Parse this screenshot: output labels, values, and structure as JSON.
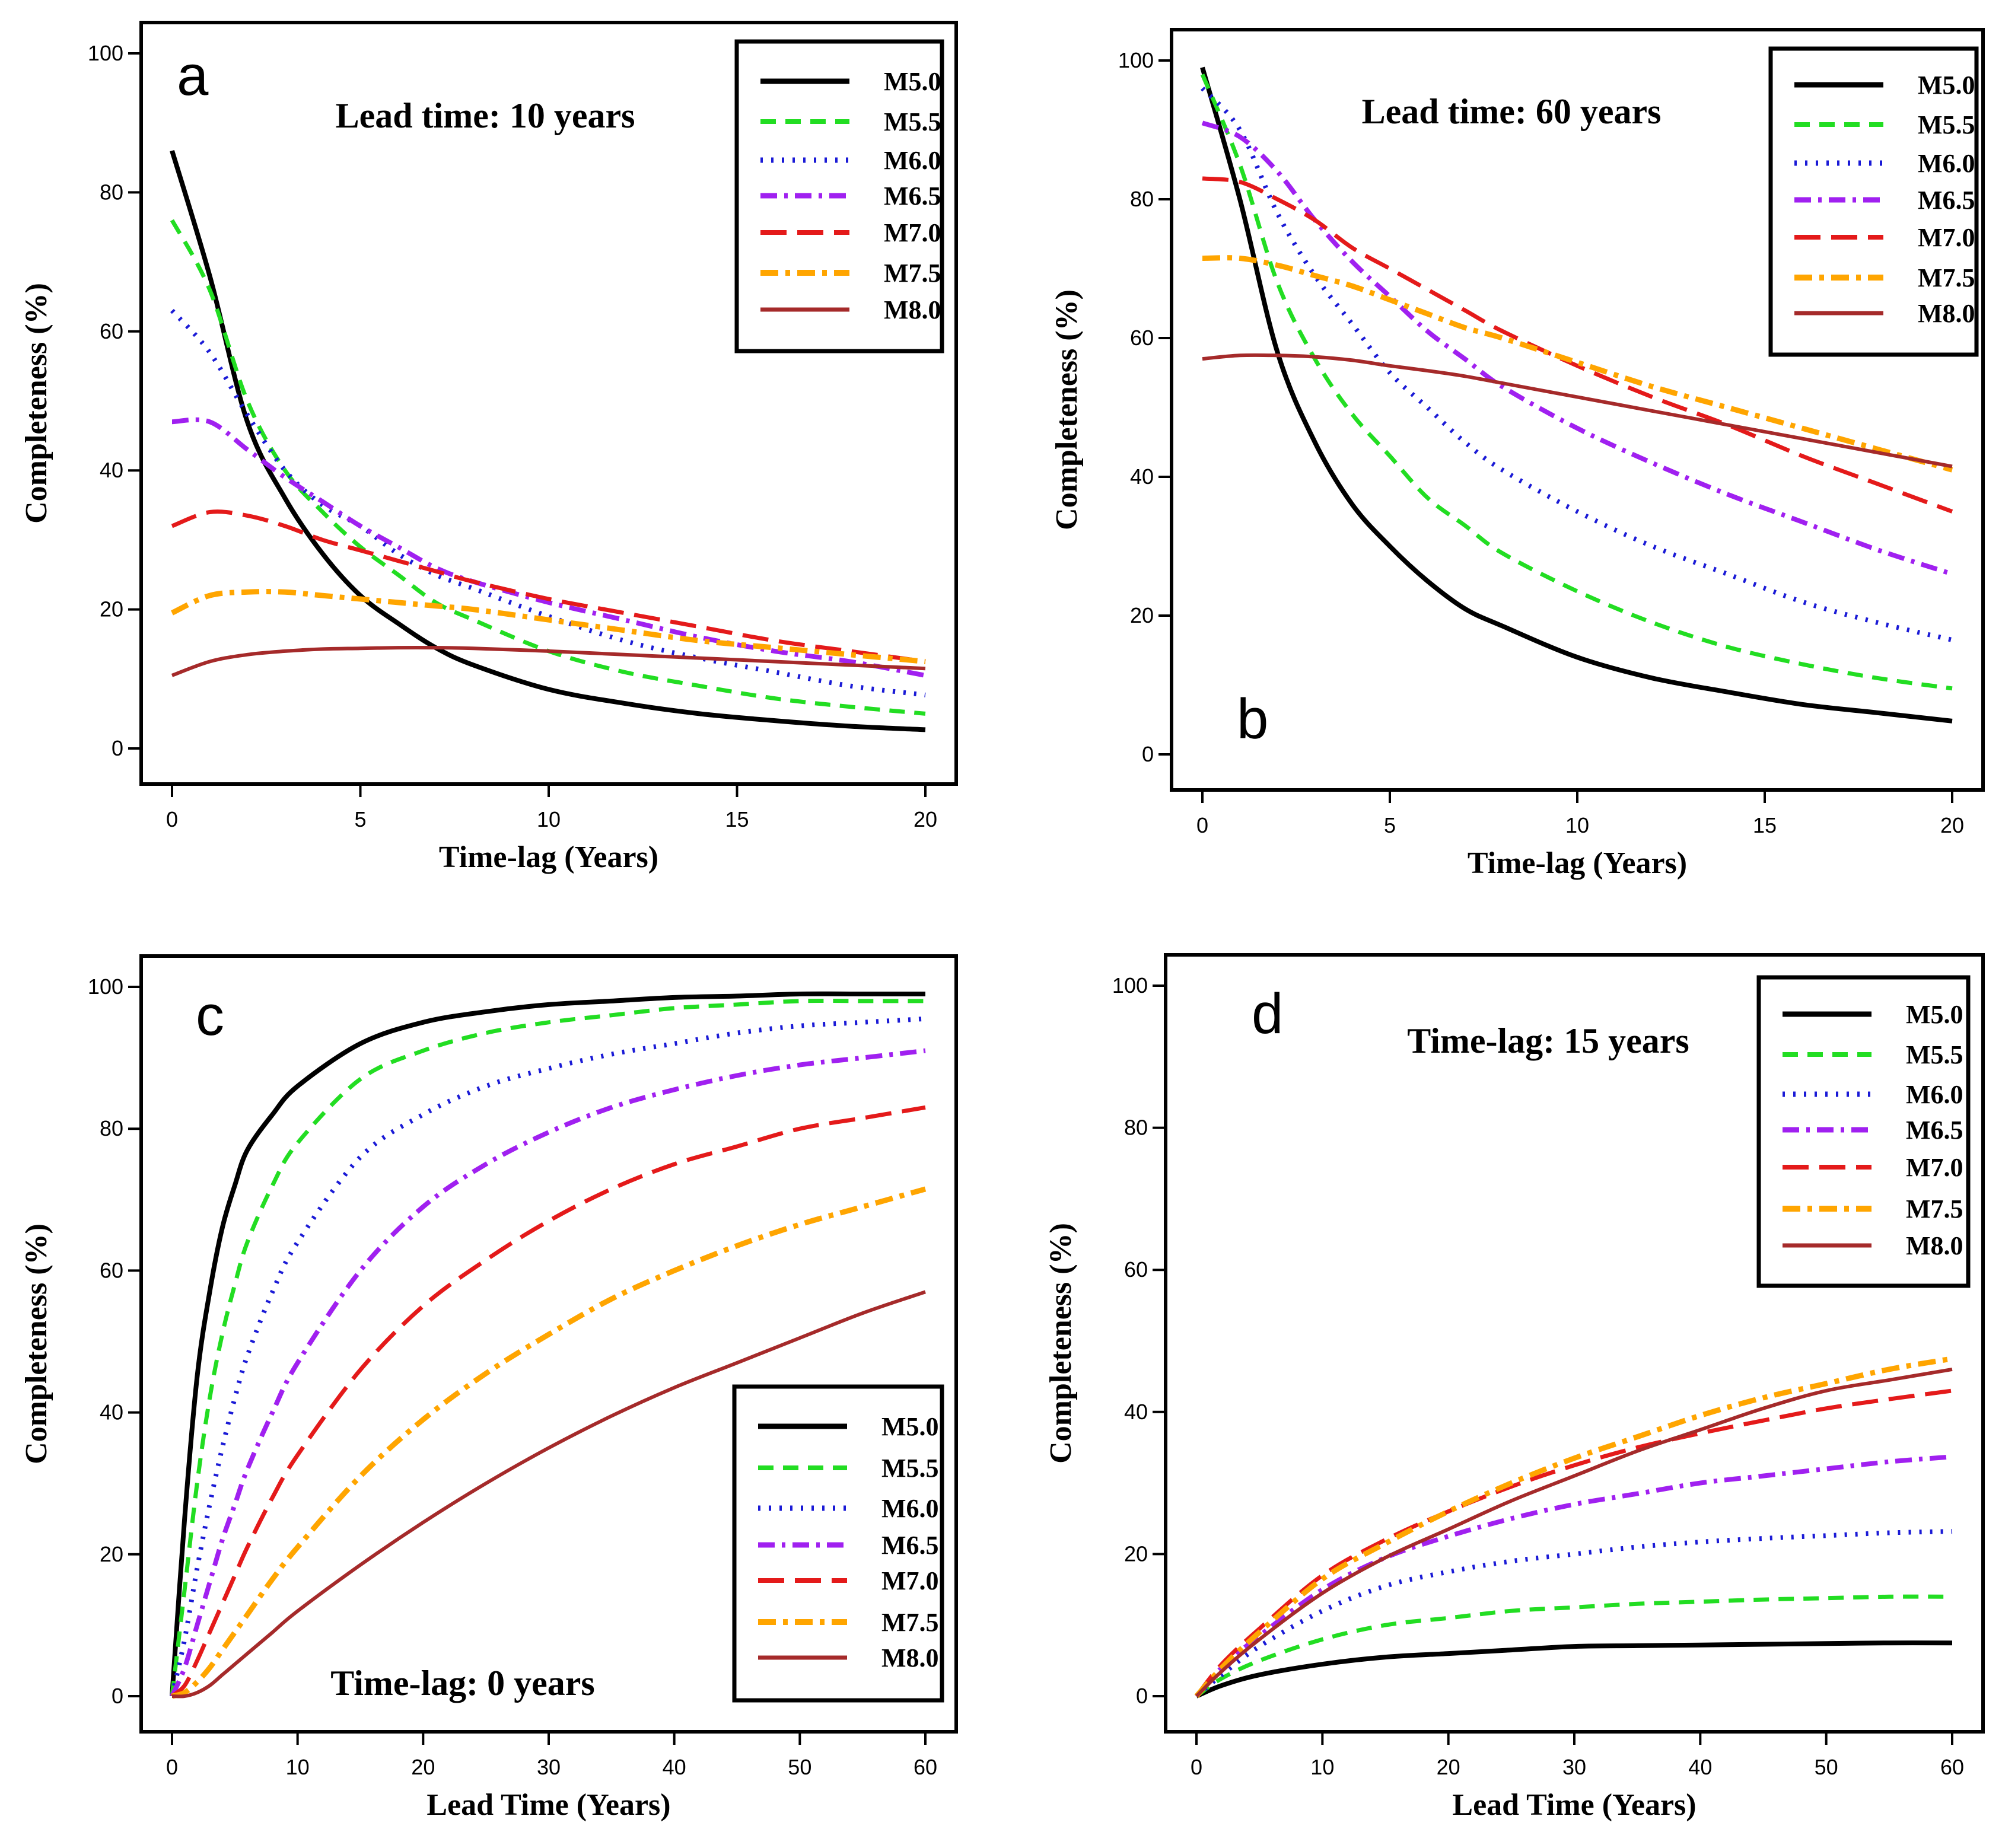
{
  "series_styles": [
    {
      "name": "M5.0",
      "color": "#000000",
      "dash": "",
      "width": 8
    },
    {
      "name": "M5.5",
      "color": "#22dd22",
      "dash": "26 16",
      "width": 7
    },
    {
      "name": "M6.0",
      "color": "#1a1ad6",
      "dash": "4 14",
      "width": 8
    },
    {
      "name": "M6.5",
      "color": "#a020f0",
      "dash": "28 12 6 12",
      "width": 8
    },
    {
      "name": "M7.0",
      "color": "#e41a1a",
      "dash": "44 18",
      "width": 7
    },
    {
      "name": "M7.5",
      "color": "#ffa500",
      "dash": "30 12 8 12",
      "width": 9
    },
    {
      "name": "M8.0",
      "color": "#a52a2a",
      "dash": "",
      "width": 6
    }
  ],
  "chart_data": [
    {
      "panel": "a",
      "type": "line",
      "annotation": "Lead time: 10 years",
      "xlabel": "Time-lag (Years)",
      "ylabel": "Completeness (%)",
      "xlim": [
        0,
        20
      ],
      "ylim": [
        0,
        100
      ],
      "xticks": [
        0,
        5,
        10,
        15,
        20
      ],
      "yticks": [
        0,
        20,
        40,
        60,
        80,
        100
      ],
      "legend": "top-right",
      "x": [
        0,
        1,
        2,
        3,
        4,
        5,
        6,
        7,
        8,
        10,
        12,
        14,
        16,
        18,
        20
      ],
      "series": [
        {
          "name": "M5.0",
          "values": [
            86,
            68,
            47,
            36,
            28,
            22,
            18,
            14.5,
            12,
            8.5,
            6.5,
            5,
            4,
            3.2,
            2.7
          ]
        },
        {
          "name": "M5.5",
          "values": [
            76,
            66,
            50,
            40,
            34,
            29,
            25,
            21,
            18.5,
            14,
            11,
            9,
            7.2,
            6,
            5
          ]
        },
        {
          "name": "M6.0",
          "values": [
            63,
            57,
            48,
            40,
            35,
            32,
            28,
            25,
            23,
            19,
            15.5,
            13,
            11,
            9,
            7.7
          ]
        },
        {
          "name": "M6.5",
          "values": [
            47,
            47,
            43,
            39,
            35.5,
            32,
            29,
            26,
            24,
            21,
            18.5,
            16,
            14,
            12.5,
            10.5
          ]
        },
        {
          "name": "M7.0",
          "values": [
            32,
            34,
            33.5,
            32,
            30,
            28.5,
            27,
            25.5,
            24,
            21.5,
            19.5,
            17.5,
            15.5,
            14,
            12.5
          ]
        },
        {
          "name": "M7.5",
          "values": [
            19.5,
            22,
            22.5,
            22.5,
            22,
            21.5,
            21,
            20.5,
            20,
            18.5,
            17,
            15.5,
            14.5,
            13.5,
            12.5
          ]
        },
        {
          "name": "M8.0",
          "values": [
            10.5,
            12.5,
            13.5,
            14,
            14.3,
            14.4,
            14.5,
            14.5,
            14.4,
            14,
            13.5,
            13,
            12.5,
            12,
            11.5
          ]
        }
      ]
    },
    {
      "panel": "b",
      "type": "line",
      "annotation": "Lead time: 60 years",
      "xlabel": "Time-lag (Years)",
      "ylabel": "Completeness (%)",
      "xlim": [
        0,
        20
      ],
      "ylim": [
        0,
        100
      ],
      "xticks": [
        0,
        5,
        10,
        15,
        20
      ],
      "yticks": [
        0,
        20,
        40,
        60,
        80,
        100
      ],
      "legend": "top-right",
      "x": [
        0,
        1,
        2,
        3,
        4,
        5,
        6,
        7,
        8,
        10,
        12,
        14,
        16,
        18,
        20
      ],
      "series": [
        {
          "name": "M5.0",
          "values": [
            99,
            80,
            58,
            45,
            36,
            30,
            25,
            21,
            18.5,
            14,
            11,
            9,
            7.2,
            6,
            4.8
          ]
        },
        {
          "name": "M5.5",
          "values": [
            98,
            85,
            68,
            57,
            49,
            43,
            37,
            33,
            29,
            23.5,
            19,
            15.5,
            13,
            11,
            9.5
          ]
        },
        {
          "name": "M6.0",
          "values": [
            96,
            90,
            78,
            69,
            62,
            55,
            50,
            45,
            41,
            35,
            30,
            26,
            22,
            19,
            16.5
          ]
        },
        {
          "name": "M6.5",
          "values": [
            91,
            89,
            84,
            77,
            71,
            66,
            61,
            57,
            53,
            47,
            42,
            37.5,
            33.5,
            29.5,
            26
          ]
        },
        {
          "name": "M7.0",
          "values": [
            83,
            82.5,
            80,
            77,
            73,
            70,
            67,
            64,
            61,
            56,
            51.5,
            47.5,
            43,
            39,
            35
          ]
        },
        {
          "name": "M7.5",
          "values": [
            71.5,
            71.5,
            70.5,
            69,
            67.5,
            65.5,
            63.5,
            61.5,
            60,
            56.5,
            53,
            50,
            47,
            44,
            41
          ]
        },
        {
          "name": "M8.0",
          "values": [
            57,
            57.5,
            57.5,
            57.3,
            56.8,
            56,
            55.3,
            54.5,
            53.5,
            51.5,
            49.5,
            47.5,
            45.5,
            43.5,
            41.5
          ]
        }
      ]
    },
    {
      "panel": "c",
      "type": "line",
      "annotation": "Time-lag: 0 years",
      "xlabel": "Lead Time  (Years)",
      "ylabel": "Completeness (%)",
      "xlim": [
        0,
        60
      ],
      "ylim": [
        0,
        100
      ],
      "xticks": [
        0,
        10,
        20,
        30,
        40,
        50,
        60
      ],
      "yticks": [
        0,
        20,
        40,
        60,
        80,
        100
      ],
      "legend": "bottom-right",
      "x": [
        0,
        1,
        2,
        3,
        4,
        5,
        6,
        8,
        10,
        15,
        20,
        25,
        30,
        35,
        40,
        45,
        50,
        55,
        60
      ],
      "series": [
        {
          "name": "M5.0",
          "values": [
            0,
            25,
            45,
            57,
            66,
            72,
            77,
            82,
            86,
            92,
            95,
            96.5,
            97.5,
            98,
            98.5,
            98.7,
            99,
            99,
            99
          ]
        },
        {
          "name": "M5.5",
          "values": [
            0,
            15,
            30,
            42,
            51,
            58,
            64,
            72,
            78,
            87,
            91,
            93.5,
            95,
            96,
            97,
            97.5,
            98,
            98,
            98
          ]
        },
        {
          "name": "M6.0",
          "values": [
            0,
            8,
            18,
            27,
            35,
            42,
            48,
            57,
            64,
            76,
            82,
            86,
            88.5,
            90.5,
            92,
            93.5,
            94.5,
            95,
            95.5
          ]
        },
        {
          "name": "M6.5",
          "values": [
            0,
            4,
            10,
            16,
            22,
            27,
            32,
            40,
            47,
            60,
            69,
            75,
            79.5,
            83,
            85.5,
            87.5,
            89,
            90,
            91
          ]
        },
        {
          "name": "M7.0",
          "values": [
            0,
            1.5,
            5,
            9,
            13,
            17,
            21,
            28,
            34,
            46,
            55,
            61.5,
            67,
            71.5,
            75,
            77.5,
            80,
            81.5,
            83
          ]
        },
        {
          "name": "M7.5",
          "values": [
            0,
            0.5,
            2,
            4,
            6.5,
            9,
            11.5,
            16.5,
            21,
            31,
            39,
            45.5,
            51,
            56,
            60,
            63.5,
            66.5,
            69,
            71.5
          ]
        },
        {
          "name": "M8.0",
          "values": [
            0,
            0,
            0.5,
            1.5,
            3,
            4.5,
            6,
            9,
            12,
            18.5,
            24.5,
            30,
            35,
            39.5,
            43.5,
            47,
            50.5,
            54,
            57
          ]
        }
      ]
    },
    {
      "panel": "d",
      "type": "line",
      "annotation": "Time-lag: 15 years",
      "xlabel": "Lead Time  (Years)",
      "ylabel": "Completeness (%)",
      "xlim": [
        0,
        60
      ],
      "ylim": [
        0,
        100
      ],
      "xticks": [
        0,
        10,
        20,
        30,
        40,
        50,
        60
      ],
      "yticks": [
        0,
        20,
        40,
        60,
        80,
        100
      ],
      "legend": "top-right",
      "x": [
        0,
        2,
        5,
        10,
        15,
        20,
        25,
        30,
        35,
        40,
        45,
        50,
        55,
        60
      ],
      "series": [
        {
          "name": "M5.0",
          "values": [
            0,
            1.5,
            3,
            4.5,
            5.5,
            6,
            6.5,
            7,
            7.1,
            7.2,
            7.3,
            7.4,
            7.5,
            7.5
          ]
        },
        {
          "name": "M5.5",
          "values": [
            0,
            2.5,
            5,
            8,
            10,
            11,
            12,
            12.5,
            13,
            13.3,
            13.6,
            13.8,
            14,
            14
          ]
        },
        {
          "name": "M6.0",
          "values": [
            0,
            3,
            7,
            12,
            15.5,
            17.5,
            19,
            20,
            21,
            21.7,
            22.2,
            22.6,
            23,
            23.2
          ]
        },
        {
          "name": "M6.5",
          "values": [
            0,
            4,
            8.5,
            15,
            19.5,
            22.5,
            25,
            27,
            28.5,
            30,
            31,
            32,
            33,
            33.7
          ]
        },
        {
          "name": "M7.0",
          "values": [
            0,
            4.5,
            9.5,
            17,
            22,
            26,
            29.5,
            32.5,
            35,
            37,
            38.8,
            40.5,
            41.8,
            43
          ]
        },
        {
          "name": "M7.5",
          "values": [
            0,
            4,
            9,
            16.5,
            21.5,
            26,
            30,
            33.5,
            36.5,
            39.5,
            42,
            44,
            46,
            47.5
          ]
        },
        {
          "name": "M8.0",
          "values": [
            0,
            3.5,
            8,
            14.5,
            19.5,
            23.5,
            27.5,
            31,
            34.5,
            37.5,
            40.5,
            43,
            44.5,
            46
          ]
        }
      ]
    }
  ]
}
